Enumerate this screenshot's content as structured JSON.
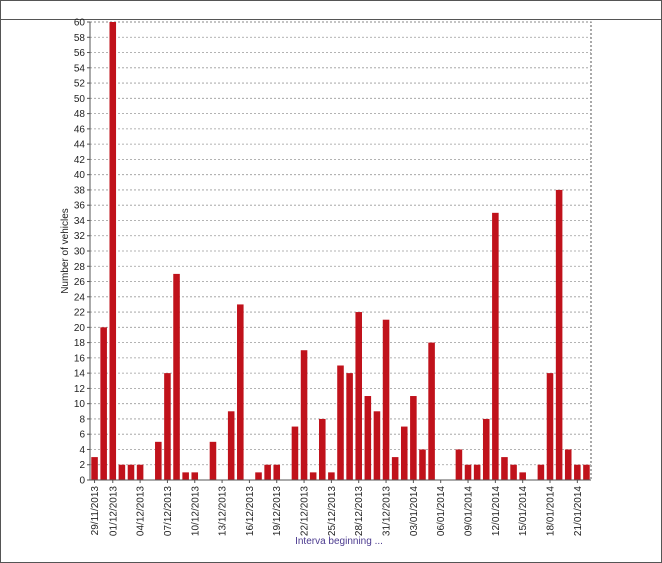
{
  "header": {
    "text": ""
  },
  "chart_data": {
    "type": "bar",
    "title": "",
    "xlabel": "Interva  beginning ...",
    "ylabel": "Number of vehicles",
    "ylim": [
      0,
      60
    ],
    "ytick_step": 2,
    "grid": true,
    "bar_color": "#c0121b",
    "tick_labels": [
      "29/11/2013",
      "01/12/2013",
      "04/12/2013",
      "07/12/2013",
      "10/12/2013",
      "13/12/2013",
      "16/12/2013",
      "19/12/2013",
      "22/12/2013",
      "25/12/2013",
      "28/12/2013",
      "31/12/2013",
      "03/01/2014",
      "06/01/2014",
      "09/01/2014",
      "12/01/2014",
      "15/01/2014",
      "18/01/2014",
      "21/01/2014"
    ],
    "categories": [
      "29/11/2013",
      "30/11/2013",
      "01/12/2013",
      "02/12/2013",
      "03/12/2013",
      "04/12/2013",
      "05/12/2013",
      "06/12/2013",
      "07/12/2013",
      "08/12/2013",
      "09/12/2013",
      "10/12/2013",
      "11/12/2013",
      "12/12/2013",
      "13/12/2013",
      "14/12/2013",
      "15/12/2013",
      "16/12/2013",
      "17/12/2013",
      "18/12/2013",
      "19/12/2013",
      "20/12/2013",
      "21/12/2013",
      "22/12/2013",
      "23/12/2013",
      "24/12/2013",
      "25/12/2013",
      "26/12/2013",
      "27/12/2013",
      "28/12/2013",
      "29/12/2013",
      "30/12/2013",
      "31/12/2013",
      "01/01/2014",
      "02/01/2014",
      "03/01/2014",
      "04/01/2014",
      "05/01/2014",
      "06/01/2014",
      "07/01/2014",
      "08/01/2014",
      "09/01/2014",
      "10/01/2014",
      "11/01/2014",
      "12/01/2014",
      "13/01/2014",
      "14/01/2014",
      "15/01/2014",
      "16/01/2014",
      "17/01/2014",
      "18/01/2014",
      "19/01/2014",
      "20/01/2014",
      "21/01/2014",
      "22/01/2014"
    ],
    "values": [
      3,
      20,
      60,
      2,
      2,
      2,
      0,
      5,
      14,
      27,
      1,
      1,
      0,
      5,
      0,
      9,
      23,
      0,
      1,
      2,
      2,
      0,
      7,
      17,
      1,
      8,
      1,
      15,
      14,
      22,
      11,
      9,
      21,
      3,
      7,
      11,
      4,
      18,
      0,
      0,
      4,
      2,
      2,
      8,
      35,
      3,
      2,
      1,
      0,
      2,
      14,
      38,
      4,
      2,
      2
    ]
  }
}
